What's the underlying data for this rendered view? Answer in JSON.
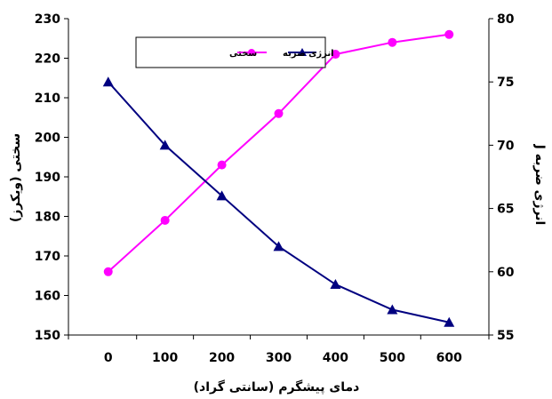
{
  "chart_data": {
    "type": "line",
    "x": [
      0,
      100,
      200,
      300,
      400,
      500,
      600
    ],
    "xlabel": "دمای پیشگرم (سانتی گراد)",
    "ylabel": "سختی (ویکرز)",
    "y2label": "انرژی ضربه J",
    "xlim": [
      -70,
      670
    ],
    "ylim": [
      150,
      230
    ],
    "y2lim": [
      55,
      80
    ],
    "xticks": [
      "0",
      "100",
      "200",
      "300",
      "400",
      "500",
      "600"
    ],
    "yticks": [
      "150",
      "160",
      "170",
      "180",
      "190",
      "200",
      "210",
      "220",
      "230"
    ],
    "y2ticks": [
      "55",
      "60",
      "65",
      "70",
      "75",
      "80"
    ],
    "grid": false,
    "legend_position": "top-center",
    "series": [
      {
        "name": "سختی",
        "axis": "left",
        "marker": "circle",
        "color": "#ff00ff",
        "values": [
          166,
          179,
          193,
          206,
          221,
          224,
          226
        ]
      },
      {
        "name": "انرژی ضربه",
        "axis": "right",
        "marker": "triangle",
        "color": "#000080",
        "values": [
          75,
          70,
          66,
          62,
          59,
          57,
          56
        ]
      }
    ]
  }
}
